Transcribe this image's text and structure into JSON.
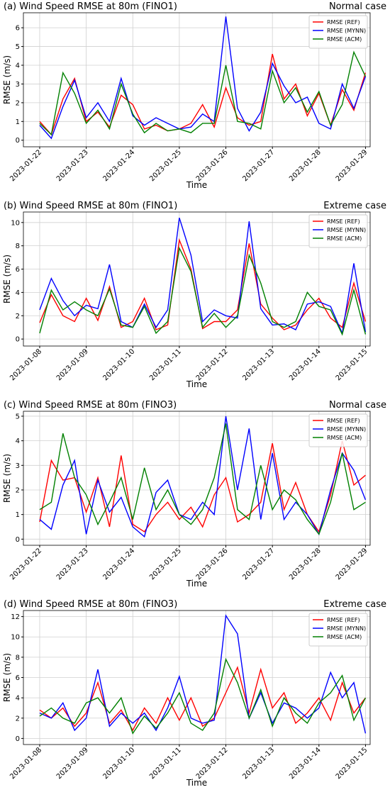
{
  "chart_data": [
    {
      "type": "line",
      "title": "(a) Wind Speed RMSE at 80m (FINO1)",
      "subtitle": "Normal case",
      "xlabel": "Time",
      "ylabel": "RMSE (m/s)",
      "grid": true,
      "legend": "upper right",
      "x": [
        0,
        0.25,
        0.5,
        0.75,
        1,
        1.25,
        1.5,
        1.75,
        2,
        2.25,
        2.5,
        2.75,
        3,
        3.25,
        3.5,
        3.75,
        4,
        4.25,
        4.5,
        4.75,
        5,
        5.25,
        5.5,
        5.75,
        6,
        6.25,
        6.5,
        6.75,
        7
      ],
      "xlim": [
        -0.35,
        7.1
      ],
      "ylim": [
        -0.35,
        6.8
      ],
      "yticks": [
        0,
        1,
        2,
        3,
        4,
        5,
        6
      ],
      "xticks": [
        {
          "value": 0,
          "label": "2023-01-22"
        },
        {
          "value": 1,
          "label": "2023-01-23"
        },
        {
          "value": 2,
          "label": "2023-01-24"
        },
        {
          "value": 3,
          "label": "2023-01-25"
        },
        {
          "value": 4,
          "label": "2023-01-26"
        },
        {
          "value": 5,
          "label": "2023-01-27"
        },
        {
          "value": 6,
          "label": "2023-01-28"
        },
        {
          "value": 7,
          "label": "2023-01-29"
        }
      ],
      "series": [
        {
          "name": "RMSE (REF)",
          "color": "#ff0000",
          "values": [
            1.0,
            0.3,
            2.2,
            3.3,
            1.0,
            1.5,
            0.7,
            2.4,
            1.9,
            0.6,
            0.8,
            0.5,
            0.6,
            0.9,
            1.9,
            0.7,
            2.8,
            1.2,
            0.8,
            1.0,
            4.6,
            2.2,
            3.0,
            1.3,
            2.5,
            0.8,
            2.7,
            1.6,
            3.6
          ]
        },
        {
          "name": "RMSE (MYNN)",
          "color": "#0000ff",
          "values": [
            0.8,
            0.1,
            1.8,
            3.2,
            1.2,
            2.0,
            1.0,
            3.3,
            1.3,
            0.8,
            1.2,
            0.9,
            0.6,
            0.7,
            1.4,
            1.0,
            6.6,
            1.7,
            0.5,
            1.5,
            4.1,
            2.9,
            2.0,
            2.3,
            0.9,
            0.6,
            3.0,
            1.7,
            3.4
          ]
        },
        {
          "name": "RMSE (ACM)",
          "color": "#008000",
          "values": [
            0.9,
            0.3,
            3.6,
            2.5,
            0.9,
            1.6,
            0.6,
            3.0,
            1.4,
            0.4,
            0.9,
            0.5,
            0.6,
            0.4,
            0.9,
            0.9,
            4.0,
            1.0,
            0.9,
            0.6,
            3.7,
            2.0,
            2.8,
            1.5,
            2.6,
            0.8,
            1.9,
            4.7,
            3.4
          ]
        }
      ]
    },
    {
      "type": "line",
      "title": "(b) Wind Speed RMSE at 80m (FINO1)",
      "subtitle": "Extreme case",
      "xlabel": "Time",
      "ylabel": "RMSE (m/s)",
      "grid": true,
      "legend": "upper right",
      "x": [
        0,
        0.25,
        0.5,
        0.75,
        1,
        1.25,
        1.5,
        1.75,
        2,
        2.25,
        2.5,
        2.75,
        3,
        3.25,
        3.5,
        3.75,
        4,
        4.25,
        4.5,
        4.75,
        5,
        5.25,
        5.5,
        5.75,
        6,
        6.25,
        6.5,
        6.75,
        7
      ],
      "xlim": [
        -0.35,
        7.1
      ],
      "ylim": [
        -0.6,
        10.9
      ],
      "yticks": [
        0,
        2,
        4,
        6,
        8,
        10
      ],
      "xticks": [
        {
          "value": 0,
          "label": "2023-01-08"
        },
        {
          "value": 1,
          "label": "2023-01-09"
        },
        {
          "value": 2,
          "label": "2023-01-10"
        },
        {
          "value": 3,
          "label": "2023-01-11"
        },
        {
          "value": 4,
          "label": "2023-01-12"
        },
        {
          "value": 5,
          "label": "2023-01-13"
        },
        {
          "value": 6,
          "label": "2023-01-14"
        },
        {
          "value": 7,
          "label": "2023-01-15"
        }
      ],
      "series": [
        {
          "name": "RMSE (REF)",
          "color": "#ff0000",
          "values": [
            1.4,
            3.8,
            2.0,
            1.5,
            3.5,
            1.6,
            4.5,
            1.0,
            1.5,
            3.5,
            0.8,
            1.2,
            8.5,
            6.0,
            0.9,
            1.5,
            1.5,
            2.5,
            8.2,
            3.0,
            1.8,
            0.8,
            1.2,
            2.5,
            3.5,
            1.8,
            1.0,
            4.8,
            1.5
          ]
        },
        {
          "name": "RMSE (MYNN)",
          "color": "#0000ff",
          "values": [
            2.5,
            5.2,
            3.3,
            2.0,
            2.9,
            2.6,
            6.4,
            1.5,
            1.0,
            3.0,
            1.0,
            2.5,
            10.4,
            7.2,
            1.5,
            2.5,
            2.0,
            1.8,
            10.1,
            2.6,
            1.2,
            1.3,
            0.8,
            3.0,
            3.2,
            2.8,
            0.5,
            6.5,
            0.6
          ]
        },
        {
          "name": "RMSE (ACM)",
          "color": "#008000",
          "values": [
            0.5,
            4.2,
            2.5,
            3.2,
            2.5,
            2.0,
            4.3,
            1.2,
            1.0,
            2.8,
            0.5,
            1.5,
            7.8,
            5.8,
            1.0,
            2.2,
            1.0,
            2.0,
            7.2,
            4.8,
            1.5,
            1.0,
            1.5,
            4.0,
            2.8,
            2.5,
            0.4,
            4.2,
            0.4
          ]
        }
      ]
    },
    {
      "type": "line",
      "title": "(c) Wind Speed RMSE at 80m (FINO3)",
      "subtitle": "Normal case",
      "xlabel": "Time",
      "ylabel": "RMSE (m/s)",
      "grid": true,
      "legend": "upper right",
      "x": [
        0,
        0.25,
        0.5,
        0.75,
        1,
        1.25,
        1.5,
        1.75,
        2,
        2.25,
        2.5,
        2.75,
        3,
        3.25,
        3.5,
        3.75,
        4,
        4.25,
        4.5,
        4.75,
        5,
        5.25,
        5.5,
        5.75,
        6,
        6.25,
        6.5,
        6.75,
        7
      ],
      "xlim": [
        -0.35,
        7.1
      ],
      "ylim": [
        -0.25,
        5.2
      ],
      "yticks": [
        0,
        1,
        2,
        3,
        4,
        5
      ],
      "xticks": [
        {
          "value": 0,
          "label": "2023-01-22"
        },
        {
          "value": 1,
          "label": "2023-01-23"
        },
        {
          "value": 2,
          "label": "2023-01-24"
        },
        {
          "value": 3,
          "label": "2023-01-25"
        },
        {
          "value": 4,
          "label": "2023-01-26"
        },
        {
          "value": 5,
          "label": "2023-01-27"
        },
        {
          "value": 6,
          "label": "2023-01-28"
        },
        {
          "value": 7,
          "label": "2023-01-29"
        }
      ],
      "series": [
        {
          "name": "RMSE (REF)",
          "color": "#ff0000",
          "values": [
            0.7,
            3.2,
            2.4,
            2.5,
            1.1,
            2.5,
            0.5,
            3.4,
            0.6,
            0.3,
            1.0,
            1.5,
            0.8,
            1.3,
            0.5,
            1.8,
            2.5,
            0.7,
            1.0,
            1.5,
            3.9,
            1.2,
            2.3,
            1.0,
            0.3,
            1.8,
            4.0,
            2.2,
            2.6
          ]
        },
        {
          "name": "RMSE (MYNN)",
          "color": "#0000ff",
          "values": [
            0.8,
            0.4,
            2.2,
            3.2,
            0.2,
            2.4,
            1.1,
            1.7,
            0.5,
            0.1,
            1.9,
            2.4,
            1.0,
            0.8,
            1.5,
            1.0,
            5.0,
            2.0,
            4.5,
            0.8,
            3.5,
            0.8,
            1.5,
            1.0,
            0.2,
            2.0,
            3.5,
            2.8,
            1.6
          ]
        },
        {
          "name": "RMSE (ACM)",
          "color": "#008000",
          "values": [
            1.2,
            1.5,
            4.3,
            2.5,
            1.8,
            0.6,
            1.5,
            2.5,
            0.8,
            2.9,
            1.2,
            2.0,
            1.0,
            0.6,
            1.2,
            2.5,
            4.7,
            1.2,
            0.8,
            3.0,
            1.2,
            2.0,
            1.6,
            0.8,
            0.2,
            1.5,
            3.5,
            1.2,
            1.5
          ]
        }
      ]
    },
    {
      "type": "line",
      "title": "(d) Wind Speed RMSE at 80m (FINO3)",
      "subtitle": "Extreme case",
      "xlabel": "Time",
      "ylabel": "RMSE (m/s)",
      "grid": true,
      "legend": "upper right",
      "x": [
        0,
        0.25,
        0.5,
        0.75,
        1,
        1.25,
        1.5,
        1.75,
        2,
        2.25,
        2.5,
        2.75,
        3,
        3.25,
        3.5,
        3.75,
        4,
        4.25,
        4.5,
        4.75,
        5,
        5.25,
        5.5,
        5.75,
        6,
        6.25,
        6.5,
        6.75,
        7
      ],
      "xlim": [
        -0.35,
        7.1
      ],
      "ylim": [
        -0.6,
        12.6
      ],
      "yticks": [
        0,
        2,
        4,
        6,
        8,
        10,
        12
      ],
      "xticks": [
        {
          "value": 0,
          "label": "2023-01-08"
        },
        {
          "value": 1,
          "label": "2023-01-09"
        },
        {
          "value": 2,
          "label": "2023-01-10"
        },
        {
          "value": 3,
          "label": "2023-01-11"
        },
        {
          "value": 4,
          "label": "2023-01-12"
        },
        {
          "value": 5,
          "label": "2023-01-13"
        },
        {
          "value": 6,
          "label": "2023-01-14"
        },
        {
          "value": 7,
          "label": "2023-01-15"
        }
      ],
      "series": [
        {
          "name": "RMSE (REF)",
          "color": "#ff0000",
          "values": [
            2.8,
            2.0,
            3.0,
            1.2,
            2.5,
            5.5,
            1.5,
            2.8,
            0.8,
            3.0,
            1.5,
            4.0,
            1.8,
            4.0,
            1.2,
            2.0,
            4.5,
            7.0,
            2.5,
            6.8,
            3.0,
            4.5,
            1.5,
            2.5,
            4.0,
            1.8,
            5.5,
            2.5,
            4.0
          ]
        },
        {
          "name": "RMSE (MYNN)",
          "color": "#0000ff",
          "values": [
            2.5,
            2.0,
            3.5,
            0.8,
            2.0,
            6.8,
            1.2,
            2.5,
            1.5,
            2.5,
            0.8,
            3.0,
            6.1,
            2.0,
            1.5,
            1.8,
            12.1,
            10.3,
            2.0,
            4.5,
            1.5,
            3.5,
            3.0,
            2.0,
            3.0,
            6.5,
            4.0,
            5.5,
            0.5
          ]
        },
        {
          "name": "RMSE (ACM)",
          "color": "#008000",
          "values": [
            2.2,
            3.0,
            2.0,
            1.5,
            3.5,
            4.0,
            2.5,
            4.0,
            0.5,
            2.2,
            1.0,
            2.5,
            4.5,
            1.5,
            0.8,
            2.5,
            7.8,
            5.5,
            2.0,
            4.8,
            1.2,
            4.0,
            2.5,
            1.5,
            3.5,
            4.5,
            6.2,
            1.8,
            4.0
          ]
        }
      ]
    }
  ]
}
